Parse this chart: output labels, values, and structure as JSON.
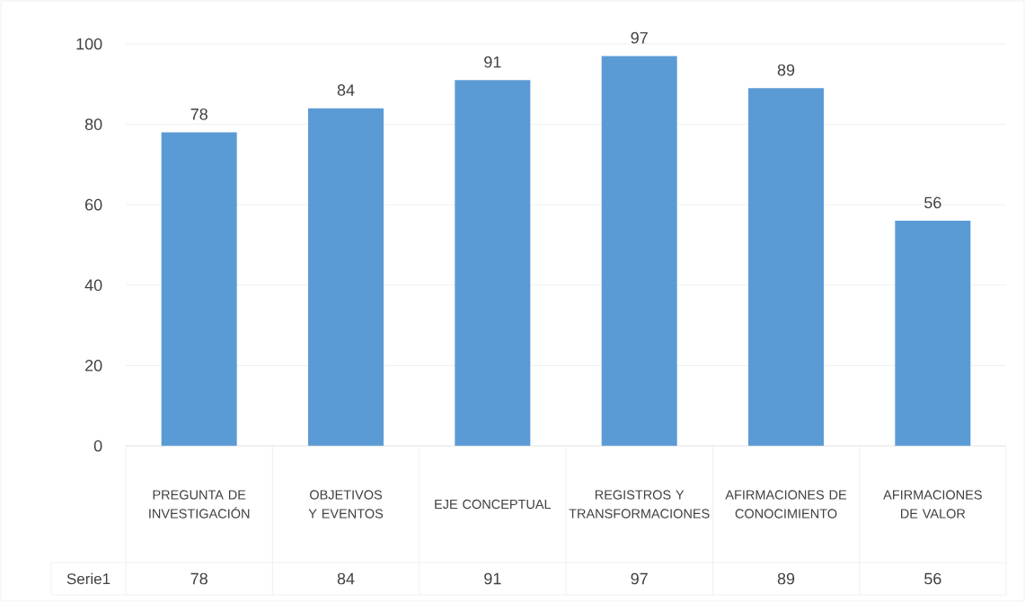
{
  "chart_data": {
    "type": "bar",
    "categories": [
      "PREGUNTA DE INVESTIGACIÓN",
      "OBJETIVOS Y EVENTOS",
      "EJE CONCEPTUAL",
      "REGISTROS Y TRANSFORMACIONES",
      "AFIRMACIONES DE CONOCIMIENTO",
      "AFIRMACIONES DE VALOR"
    ],
    "series": [
      {
        "name": "Serie1",
        "color": "#5b9bd5",
        "values": [
          78,
          84,
          91,
          97,
          89,
          56
        ],
        "value_labels": [
          "78",
          "84",
          "91",
          "97",
          "89",
          "56"
        ]
      }
    ],
    "ylim": [
      0,
      100
    ],
    "yticks": [
      0,
      20,
      40,
      60,
      80,
      100
    ],
    "grid": "y",
    "annotations": [
      "78",
      "84",
      "91",
      "97",
      "89",
      "56"
    ]
  }
}
